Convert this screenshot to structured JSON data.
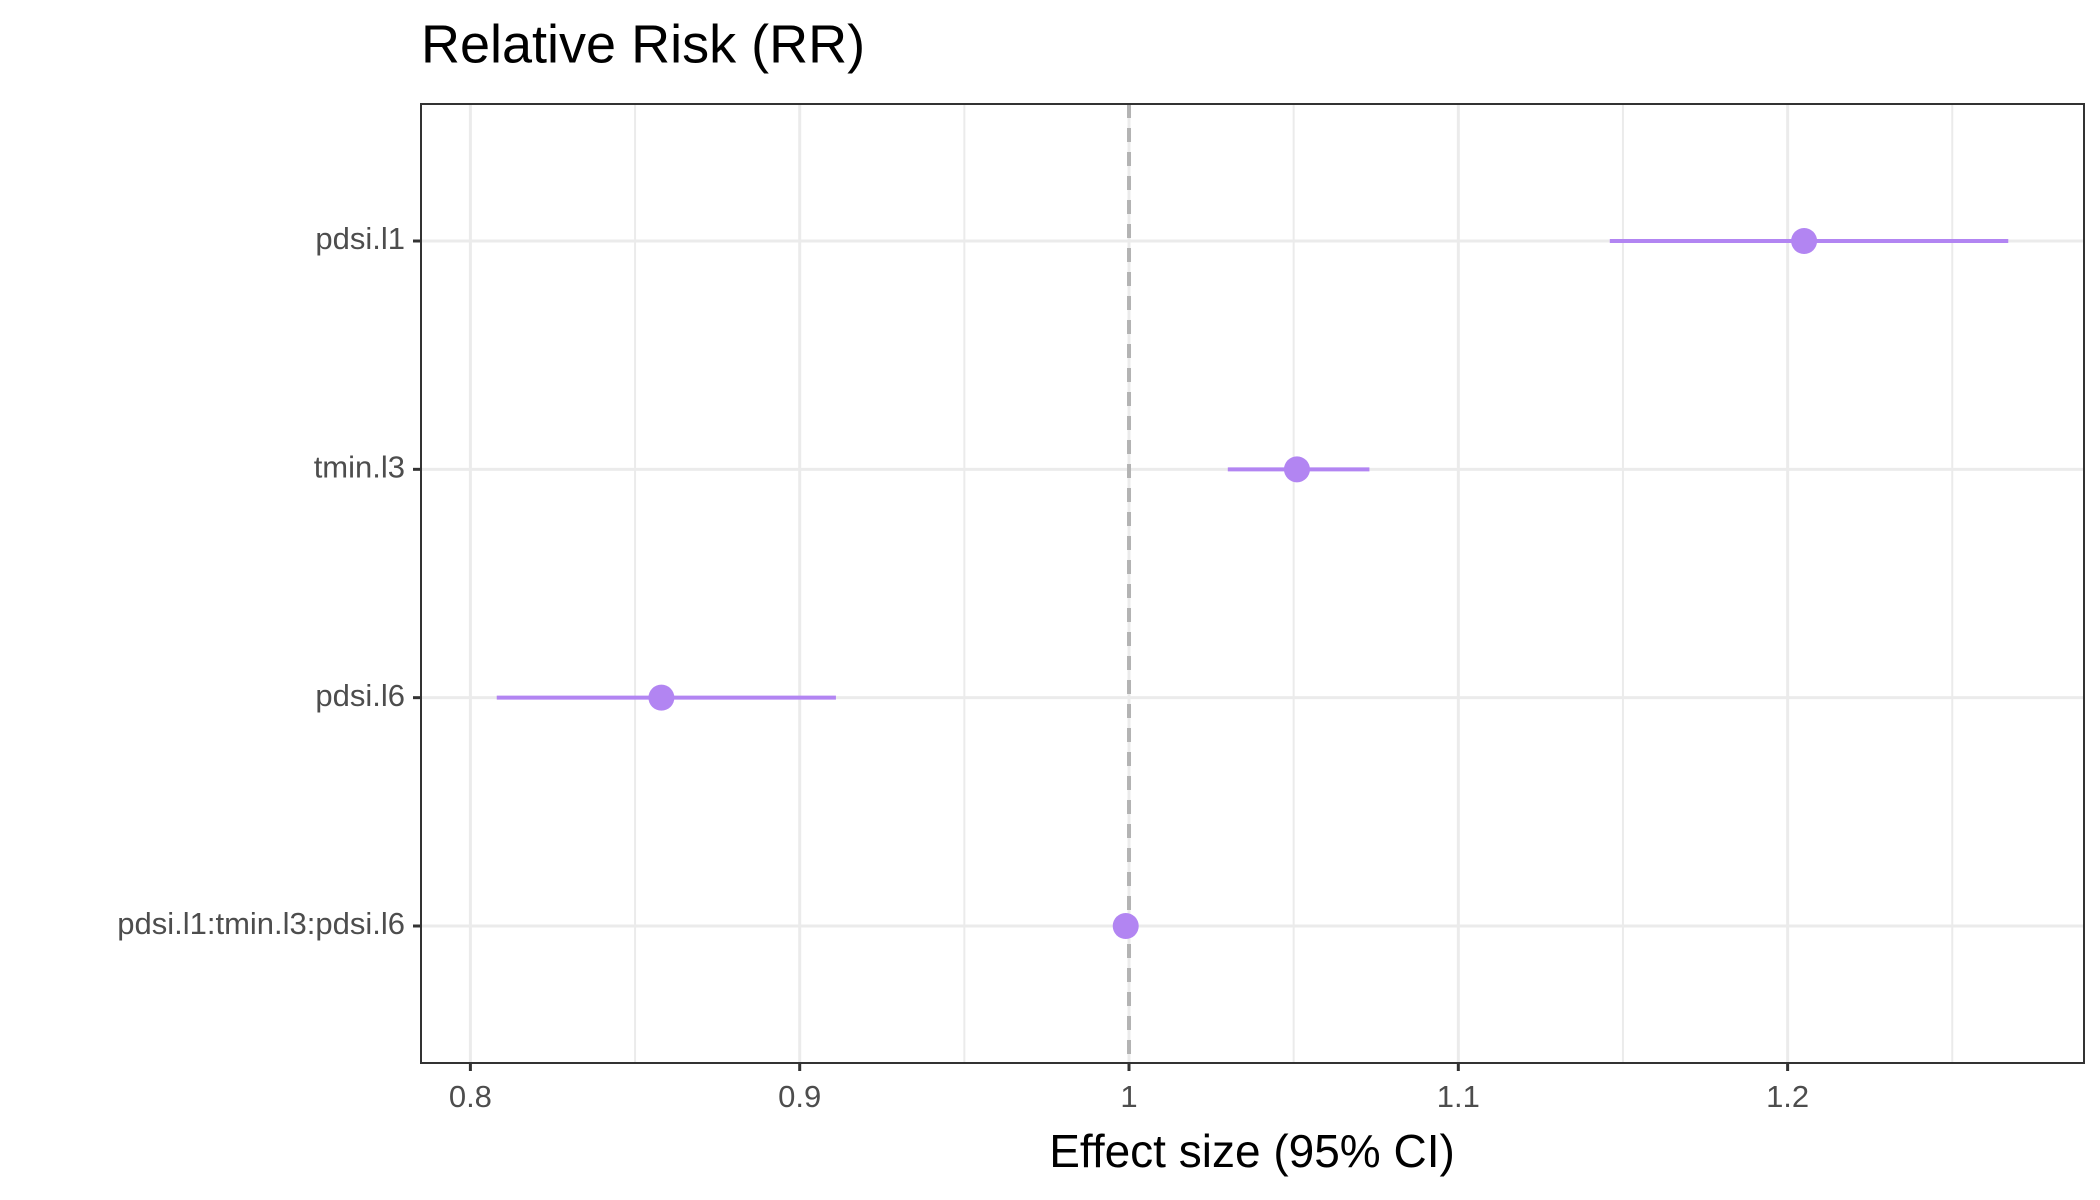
{
  "chart_data": {
    "type": "forest",
    "title": "Relative Risk (RR)",
    "x_label": "Effect size (95% CI)",
    "categories": [
      "pdsi.l1",
      "tmin.l3",
      "pdsi.l6",
      "pdsi.l1:tmin.l3:pdsi.l6"
    ],
    "values": [
      1.205,
      1.051,
      0.858,
      0.999
    ],
    "lower": [
      1.146,
      1.03,
      0.808,
      0.998
    ],
    "upper": [
      1.267,
      1.073,
      0.911,
      1.0
    ],
    "color": "#b285f2",
    "xlim": [
      0.785,
      1.29
    ],
    "xticks": [
      0.8,
      0.9,
      1,
      1.1,
      1.2
    ],
    "minor_grid": [
      0.85,
      0.95,
      1.05,
      1.15,
      1.25
    ],
    "reference_line": 1,
    "grid": true
  }
}
